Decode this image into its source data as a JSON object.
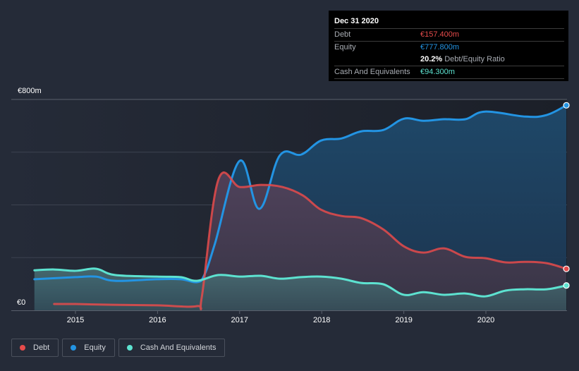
{
  "tooltip": {
    "date": "Dec 31 2020",
    "rows": [
      {
        "label": "Debt",
        "value": "€157.400m",
        "color": "#e64b4b"
      },
      {
        "label": "Equity",
        "value": "€777.800m",
        "color": "#2394e3"
      },
      {
        "label": "",
        "ratio_value": "20.2%",
        "ratio_text": "Debt/Equity Ratio"
      },
      {
        "label": "Cash And Equivalents",
        "value": "€94.300m",
        "color": "#5de2d0"
      }
    ]
  },
  "legend": [
    {
      "label": "Debt",
      "color": "#e64b4b"
    },
    {
      "label": "Equity",
      "color": "#2394e3"
    },
    {
      "label": "Cash And Equivalents",
      "color": "#5de2d0"
    }
  ],
  "chart_data": {
    "type": "area",
    "title": "",
    "xlabel": "",
    "ylabel": "",
    "currency": "€",
    "ylim": [
      0,
      800
    ],
    "xlim": [
      2014.5,
      2020.98
    ],
    "y_tick_labels": [
      {
        "value": 800,
        "label": "€800m"
      },
      {
        "value": 0,
        "label": "€0"
      }
    ],
    "gridlines_at": [
      0,
      200,
      400,
      600,
      800
    ],
    "x_tick_labels": [
      "2015",
      "2016",
      "2017",
      "2018",
      "2019",
      "2020"
    ],
    "x_tick_values": [
      2015,
      2016,
      2017,
      2018,
      2019,
      2020
    ],
    "grid": true,
    "legend_position": "bottom-left",
    "series": [
      {
        "name": "Equity",
        "color": "#2394e3",
        "points": [
          [
            2014.5,
            118
          ],
          [
            2015.0,
            126
          ],
          [
            2015.25,
            128
          ],
          [
            2015.48,
            112
          ],
          [
            2015.99,
            118
          ],
          [
            2016.28,
            118
          ],
          [
            2016.48,
            107
          ],
          [
            2016.57,
            134
          ],
          [
            2016.7,
            254
          ],
          [
            2017.0,
            567
          ],
          [
            2017.24,
            385
          ],
          [
            2017.49,
            588
          ],
          [
            2017.75,
            591
          ],
          [
            2017.99,
            644
          ],
          [
            2018.24,
            652
          ],
          [
            2018.48,
            679
          ],
          [
            2018.75,
            684
          ],
          [
            2019.0,
            727
          ],
          [
            2019.24,
            719
          ],
          [
            2019.49,
            725
          ],
          [
            2019.75,
            725
          ],
          [
            2019.99,
            754
          ],
          [
            2020.48,
            735
          ],
          [
            2020.74,
            741
          ],
          [
            2020.98,
            777.8
          ]
        ]
      },
      {
        "name": "Debt",
        "color": "#e64b4b",
        "points": [
          [
            2014.74,
            24
          ],
          [
            2015.0,
            24
          ],
          [
            2015.46,
            21
          ],
          [
            2016.0,
            19
          ],
          [
            2016.48,
            16
          ],
          [
            2016.54,
            53
          ],
          [
            2016.74,
            495
          ],
          [
            2017.0,
            468
          ],
          [
            2017.26,
            476
          ],
          [
            2017.52,
            468
          ],
          [
            2017.77,
            436
          ],
          [
            2017.99,
            382
          ],
          [
            2018.24,
            358
          ],
          [
            2018.48,
            350
          ],
          [
            2018.75,
            307
          ],
          [
            2019.0,
            243
          ],
          [
            2019.24,
            219
          ],
          [
            2019.49,
            235
          ],
          [
            2019.75,
            203
          ],
          [
            2019.99,
            198
          ],
          [
            2020.24,
            182
          ],
          [
            2020.48,
            184
          ],
          [
            2020.74,
            179
          ],
          [
            2020.98,
            157.4
          ]
        ]
      },
      {
        "name": "Cash And Equivalents",
        "color": "#5de2d0",
        "points": [
          [
            2014.5,
            152
          ],
          [
            2014.74,
            155
          ],
          [
            2015.0,
            150
          ],
          [
            2015.25,
            158
          ],
          [
            2015.48,
            134
          ],
          [
            2015.99,
            128
          ],
          [
            2016.28,
            126
          ],
          [
            2016.48,
            112
          ],
          [
            2016.74,
            134
          ],
          [
            2017.0,
            128
          ],
          [
            2017.26,
            131
          ],
          [
            2017.49,
            120
          ],
          [
            2017.75,
            126
          ],
          [
            2017.99,
            128
          ],
          [
            2018.24,
            120
          ],
          [
            2018.48,
            104
          ],
          [
            2018.75,
            99
          ],
          [
            2019.0,
            59
          ],
          [
            2019.24,
            69
          ],
          [
            2019.49,
            59
          ],
          [
            2019.75,
            64
          ],
          [
            2019.99,
            53
          ],
          [
            2020.24,
            75
          ],
          [
            2020.48,
            80
          ],
          [
            2020.74,
            80
          ],
          [
            2020.98,
            94.3
          ]
        ]
      }
    ]
  }
}
